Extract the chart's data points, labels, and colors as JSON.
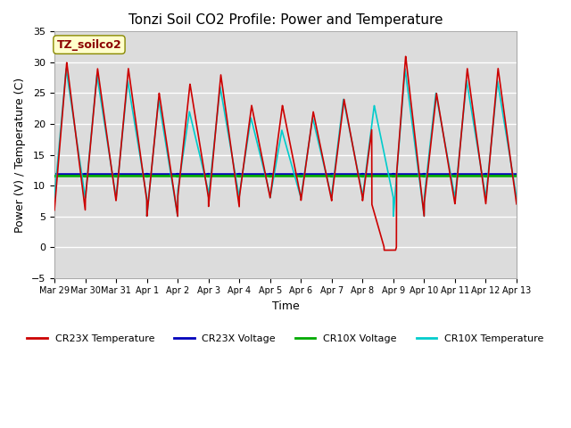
{
  "title": "Tonzi Soil CO2 Profile: Power and Temperature",
  "xlabel": "Time",
  "ylabel": "Power (V) / Temperature (C)",
  "ylim": [
    -5,
    35
  ],
  "xlim": [
    0,
    15
  ],
  "annotation_text": "TZ_soilco2",
  "annotation_color": "#8B0000",
  "annotation_bg": "#FFFFCC",
  "bg_color": "#DCDCDC",
  "tick_labels": [
    "Mar 29",
    "Mar 30",
    "Mar 31",
    "Apr 1",
    "Apr 2",
    "Apr 3",
    "Apr 4",
    "Apr 5",
    "Apr 6",
    "Apr 7",
    "Apr 8",
    "Apr 9",
    "Apr 10",
    "Apr 11",
    "Apr 12",
    "Apr 13"
  ],
  "cr23x_voltage_val": 11.8,
  "cr10x_voltage_val": 11.55,
  "colors": {
    "cr23x_temp": "#CC0000",
    "cr23x_volt": "#0000BB",
    "cr10x_volt": "#00AA00",
    "cr10x_temp": "#00CCCC"
  },
  "legend_labels": [
    "CR23X Temperature",
    "CR23X Voltage",
    "CR10X Voltage",
    "CR10X Temperature"
  ]
}
